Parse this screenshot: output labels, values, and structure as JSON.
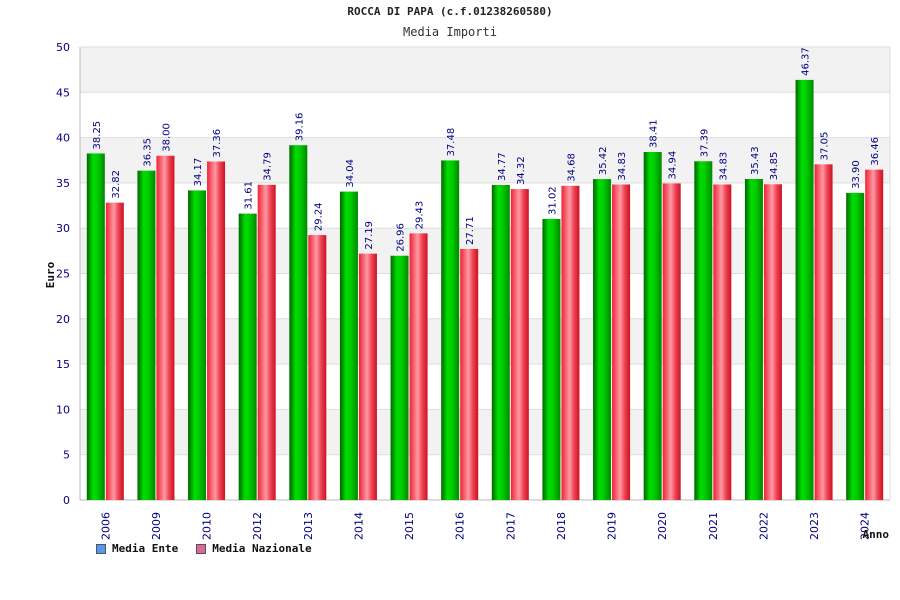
{
  "title": "ROCCA DI PAPA (c.f.01238260580)",
  "subtitle": "Media Importi",
  "chart_data": {
    "type": "bar",
    "categories": [
      "2006",
      "2009",
      "2010",
      "2012",
      "2013",
      "2014",
      "2015",
      "2016",
      "2017",
      "2018",
      "2019",
      "2020",
      "2021",
      "2022",
      "2023",
      "2024"
    ],
    "series": [
      {
        "name": "Media Ente",
        "values": [
          38.25,
          36.35,
          34.17,
          31.61,
          39.16,
          34.04,
          26.96,
          37.48,
          34.77,
          31.02,
          35.42,
          38.41,
          37.39,
          35.43,
          46.37,
          33.9
        ],
        "color": "#00bb00",
        "legend_color": "#5599ee"
      },
      {
        "name": "Media Nazionale",
        "values": [
          32.82,
          38.0,
          37.36,
          34.79,
          29.24,
          27.19,
          29.43,
          27.71,
          34.32,
          34.68,
          34.83,
          34.94,
          34.83,
          34.85,
          37.05,
          36.46
        ],
        "color": "#ee2233",
        "legend_color": "#dd6699"
      }
    ],
    "ylabel": "Euro",
    "xlabel": "Anno",
    "ylim": [
      0,
      50
    ],
    "yticks": [
      0,
      5,
      10,
      15,
      20,
      25,
      30,
      35,
      40,
      45,
      50
    ],
    "grid": true
  }
}
